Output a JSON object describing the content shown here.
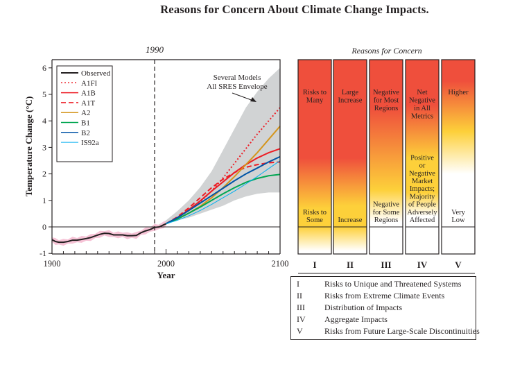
{
  "title": "Reasons for Concern About Climate Change Impacts.",
  "chart_data": [
    {
      "type": "line",
      "title": "1990",
      "xlabel": "Year",
      "ylabel": "Temperature Change (°C)",
      "xlim": [
        1900,
        2100
      ],
      "ylim": [
        -1,
        6.2
      ],
      "x_ticks": [
        "1900",
        "2000",
        "2100"
      ],
      "x_minor_tick_step": 10,
      "y_ticks": [
        "-1",
        "0",
        "1",
        "2",
        "3",
        "4",
        "5",
        "6"
      ],
      "reference_vline": 1990,
      "reference_hline": 0,
      "annotation": {
        "text_line1": "Several Models",
        "text_line2": "All SRES Envelope"
      },
      "envelope": {
        "name": "Several Models All SRES Envelope",
        "color": "#d1d3d4",
        "x": [
          1990,
          2000,
          2010,
          2020,
          2030,
          2040,
          2050,
          2060,
          2070,
          2080,
          2090,
          2100
        ],
        "upper": [
          0.0,
          0.25,
          0.6,
          1.0,
          1.5,
          2.1,
          2.9,
          3.7,
          4.5,
          5.1,
          5.6,
          6.0
        ],
        "lower": [
          0.0,
          0.12,
          0.25,
          0.35,
          0.5,
          0.65,
          0.8,
          1.0,
          1.15,
          1.25,
          1.3,
          1.3
        ]
      },
      "observed": {
        "name": "Observed",
        "color": "#231f20",
        "x": [
          1900,
          1903,
          1906,
          1910,
          1914,
          1918,
          1922,
          1926,
          1930,
          1934,
          1938,
          1942,
          1946,
          1950,
          1954,
          1958,
          1962,
          1966,
          1970,
          1974,
          1978,
          1982,
          1986,
          1990,
          1994,
          1998,
          2000
        ],
        "y": [
          -0.48,
          -0.55,
          -0.58,
          -0.58,
          -0.55,
          -0.5,
          -0.5,
          -0.47,
          -0.44,
          -0.4,
          -0.34,
          -0.28,
          -0.24,
          -0.25,
          -0.3,
          -0.3,
          -0.3,
          -0.33,
          -0.33,
          -0.32,
          -0.22,
          -0.15,
          -0.1,
          -0.02,
          0.0,
          0.08,
          0.12
        ],
        "noise_band_color": "#f6c3d6"
      },
      "series": [
        {
          "name": "A1FI",
          "color": "#ed1c24",
          "style": "dotted",
          "x": [
            2000,
            2010,
            2020,
            2030,
            2040,
            2050,
            2060,
            2070,
            2080,
            2090,
            2100
          ],
          "y": [
            0.12,
            0.35,
            0.62,
            0.95,
            1.35,
            1.85,
            2.4,
            2.95,
            3.5,
            4.0,
            4.5
          ]
        },
        {
          "name": "A1B",
          "color": "#ed1c24",
          "style": "solid",
          "x": [
            2000,
            2010,
            2020,
            2030,
            2040,
            2050,
            2060,
            2070,
            2080,
            2090,
            2100
          ],
          "y": [
            0.12,
            0.35,
            0.65,
            0.98,
            1.35,
            1.7,
            2.05,
            2.35,
            2.6,
            2.8,
            2.95
          ]
        },
        {
          "name": "A1T",
          "color": "#ed1c24",
          "style": "dashed",
          "x": [
            2000,
            2010,
            2020,
            2030,
            2040,
            2050,
            2060,
            2070,
            2080,
            2090,
            2100
          ],
          "y": [
            0.12,
            0.38,
            0.72,
            1.1,
            1.48,
            1.8,
            2.05,
            2.25,
            2.35,
            2.42,
            2.45
          ]
        },
        {
          "name": "A2",
          "color": "#d4951c",
          "style": "solid",
          "x": [
            2000,
            2010,
            2020,
            2030,
            2040,
            2050,
            2060,
            2070,
            2080,
            2090,
            2100
          ],
          "y": [
            0.12,
            0.3,
            0.52,
            0.78,
            1.1,
            1.48,
            1.9,
            2.35,
            2.8,
            3.3,
            3.8
          ]
        },
        {
          "name": "B1",
          "color": "#00a651",
          "style": "solid",
          "x": [
            2000,
            2010,
            2020,
            2030,
            2040,
            2050,
            2060,
            2070,
            2080,
            2090,
            2100
          ],
          "y": [
            0.12,
            0.3,
            0.52,
            0.75,
            1.0,
            1.25,
            1.48,
            1.68,
            1.83,
            1.93,
            1.98
          ]
        },
        {
          "name": "B2",
          "color": "#0054a6",
          "style": "solid",
          "x": [
            2000,
            2010,
            2020,
            2030,
            2040,
            2050,
            2060,
            2070,
            2080,
            2090,
            2100
          ],
          "y": [
            0.12,
            0.35,
            0.62,
            0.9,
            1.18,
            1.46,
            1.74,
            2.0,
            2.22,
            2.45,
            2.65
          ]
        },
        {
          "name": "IS92a",
          "color": "#00aeef",
          "style": "solid",
          "x": [
            2000,
            2010,
            2020,
            2030,
            2040,
            2050,
            2060,
            2070,
            2080,
            2090,
            2100
          ],
          "y": [
            0.12,
            0.25,
            0.42,
            0.62,
            0.85,
            1.1,
            1.35,
            1.62,
            1.9,
            2.2,
            2.5
          ]
        }
      ]
    },
    {
      "type": "heatmap",
      "title": "Reasons for Concern",
      "ylim": [
        -1,
        6.2
      ],
      "zero_line": 0,
      "colors": {
        "high": "#ef4f3c",
        "mid": "#fdd03a",
        "low": "#ffffff"
      },
      "columns": [
        {
          "id": "I",
          "upper_label": [
            "Risks to",
            "Many"
          ],
          "upper_label_y": 5.0,
          "lower_label": [
            "Risks to",
            "Some"
          ],
          "lower_label_y": 0.3,
          "gradient": [
            [
              6.2,
              "high"
            ],
            [
              2.6,
              "high"
            ],
            [
              0.7,
              "mid"
            ],
            [
              0.0,
              "mid"
            ],
            [
              -0.9,
              "low"
            ]
          ]
        },
        {
          "id": "II",
          "upper_label": [
            "Large",
            "Increase"
          ],
          "upper_label_y": 5.0,
          "lower_label": [
            "Increase"
          ],
          "lower_label_y": 0.15,
          "gradient": [
            [
              6.2,
              "high"
            ],
            [
              2.6,
              "high"
            ],
            [
              0.8,
              "mid"
            ],
            [
              0.0,
              "mid"
            ],
            [
              -0.9,
              "low"
            ]
          ]
        },
        {
          "id": "III",
          "upper_label": [
            "Negative",
            "for Most",
            "Regions"
          ],
          "upper_label_y": 5.0,
          "lower_label": [
            "Negative",
            "for Some",
            "Regions"
          ],
          "lower_label_y": 0.6,
          "gradient": [
            [
              6.2,
              "high"
            ],
            [
              4.5,
              "high"
            ],
            [
              1.4,
              "mid"
            ],
            [
              0.2,
              "low"
            ],
            [
              -1,
              "low"
            ]
          ]
        },
        {
          "id": "IV",
          "upper_label": [
            "Net",
            "Negative",
            "in All",
            "Metrics"
          ],
          "upper_label_y": 5.0,
          "lower_label": [
            "Positive",
            "or",
            "Negative",
            "Market",
            "Impacts;",
            "Majority",
            "of People",
            "Adversely",
            "Affected"
          ],
          "lower_label_y": 2.65,
          "gradient": [
            [
              6.2,
              "high"
            ],
            [
              4.6,
              "high"
            ],
            [
              2.6,
              "mid"
            ],
            [
              1.3,
              "mid"
            ],
            [
              0.4,
              "low"
            ],
            [
              -1,
              "low"
            ]
          ]
        },
        {
          "id": "V",
          "upper_label": [
            "Higher"
          ],
          "upper_label_y": 5.0,
          "lower_label": [
            "Very",
            "Low"
          ],
          "lower_label_y": 0.15,
          "gradient": [
            [
              6.2,
              "high"
            ],
            [
              5.5,
              "high"
            ],
            [
              3.6,
              "mid"
            ],
            [
              2.0,
              "low"
            ],
            [
              -1,
              "low"
            ]
          ]
        }
      ]
    }
  ],
  "legend": {
    "entries": [
      "Observed",
      "A1FI",
      "A1B",
      "A1T",
      "A2",
      "B1",
      "B2",
      "IS92a"
    ]
  },
  "concern_key": [
    {
      "num": "I",
      "text": "Risks to Unique and Threatened Systems"
    },
    {
      "num": "II",
      "text": "Risks from Extreme Climate Events"
    },
    {
      "num": "III",
      "text": "Distribution of Impacts"
    },
    {
      "num": "IV",
      "text": "Aggregate Impacts"
    },
    {
      "num": "V",
      "text": "Risks from Future Large-Scale Discontinuities"
    }
  ]
}
